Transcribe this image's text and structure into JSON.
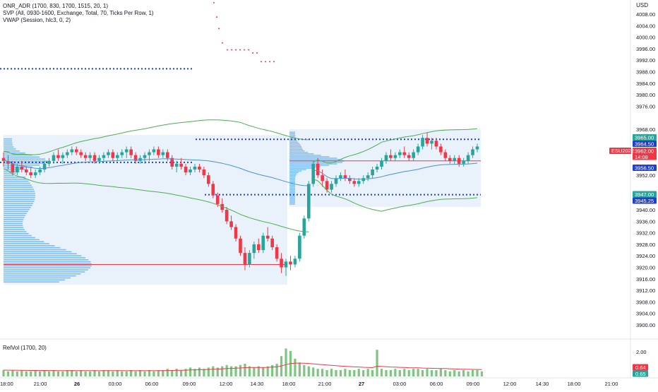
{
  "chart": {
    "currency": "USD",
    "indicators": [
      "ONR_ADR (1700, 830, 1700, 1515, 20, 1)",
      "SVP (All, 0930-1600, Exchange, Total, 70, Ticks Per Row, 1)",
      "VWAP (Session, hlc3, 0, 2)"
    ],
    "lower_pane_title": "RelVol (1700, 20)",
    "price_scale_ticks": [
      "4008.00",
      "4004.00",
      "4000.00",
      "3996.00",
      "3992.00",
      "3988.00",
      "3984.00",
      "3980.00",
      "3976.00",
      "3968.00",
      "3952.00",
      "3940.00",
      "3936.00",
      "3932.00",
      "3928.00",
      "3924.00",
      "3920.00",
      "3916.00",
      "3912.00",
      "3908.00",
      "3904.00",
      "3900.00"
    ],
    "price_tags": [
      {
        "text": "3965.00",
        "color": "#26a69a",
        "price": 3965.0
      },
      {
        "text": "3964.50",
        "color": "#1f3fcf",
        "price": 3964.5
      },
      {
        "text": "3962.00",
        "color": "#f23645",
        "price": 3962.0
      },
      {
        "text": "14:08",
        "color": "#f23645",
        "price": 3960.0
      },
      {
        "text": "3956.50",
        "color": "#1f3fcf",
        "price": 3956.5
      },
      {
        "text": "3947.00",
        "color": "#26a69a",
        "price": 3947.0
      },
      {
        "text": "3945.25",
        "color": "#1f3fcf",
        "price": 3945.25
      }
    ],
    "symbol_tag": "ESU2022",
    "relvol_scale_ticks": [
      "2.00",
      "1.00"
    ],
    "relvol_tags": [
      {
        "text": "0.64",
        "color": "#f23645"
      },
      {
        "text": "0.65",
        "color": "#26a69a"
      }
    ],
    "time_axis_labels": [
      "18:00",
      "21:00",
      "26",
      "03:00",
      "06:00",
      "09:00",
      "12:00",
      "14:30",
      "18:00",
      "21:00",
      "27",
      "03:00",
      "06:00",
      "09:00",
      "12:00",
      "14:30",
      "18:00",
      "21:00"
    ],
    "colors": {
      "up": "#26a69a",
      "down": "#f23645",
      "dotted_level": "#1f3fcf",
      "profile": "#2196f3",
      "vwap": "#4a90d9",
      "band": "#4caf50",
      "poc": "#f23645"
    }
  },
  "chart_data": {
    "type": "candlestick",
    "price_range": [
      3898,
      4012
    ],
    "levels": [
      3989,
      3964.5,
      3956.5,
      3945.25
    ],
    "poc_prices": [
      3921,
      3957
    ],
    "adr_dots": [
      4012,
      4008,
      4004,
      4000,
      3997,
      3995,
      3991
    ],
    "candles": [
      [
        3958,
        3960,
        3955,
        3957
      ],
      [
        3957,
        3959,
        3954,
        3956
      ],
      [
        3956,
        3957,
        3952,
        3953
      ],
      [
        3953,
        3956,
        3952,
        3955
      ],
      [
        3955,
        3957,
        3953,
        3954
      ],
      [
        3954,
        3955,
        3952,
        3953
      ],
      [
        3953,
        3955,
        3951,
        3952
      ],
      [
        3952,
        3954,
        3951,
        3953
      ],
      [
        3953,
        3955,
        3952,
        3954
      ],
      [
        3954,
        3957,
        3953,
        3956
      ],
      [
        3956,
        3958,
        3955,
        3957
      ],
      [
        3957,
        3960,
        3956,
        3959
      ],
      [
        3959,
        3961,
        3957,
        3958
      ],
      [
        3958,
        3960,
        3956,
        3959
      ],
      [
        3959,
        3961,
        3958,
        3960
      ],
      [
        3960,
        3962,
        3959,
        3961
      ],
      [
        3961,
        3962,
        3959,
        3960
      ],
      [
        3960,
        3961,
        3958,
        3959
      ],
      [
        3959,
        3960,
        3957,
        3958
      ],
      [
        3958,
        3960,
        3957,
        3959
      ],
      [
        3959,
        3960,
        3956,
        3957
      ],
      [
        3957,
        3959,
        3956,
        3958
      ],
      [
        3958,
        3960,
        3957,
        3959
      ],
      [
        3959,
        3961,
        3958,
        3960
      ],
      [
        3960,
        3961,
        3957,
        3958
      ],
      [
        3958,
        3960,
        3957,
        3959
      ],
      [
        3959,
        3961,
        3958,
        3960
      ],
      [
        3960,
        3962,
        3958,
        3961
      ],
      [
        3961,
        3962,
        3958,
        3959
      ],
      [
        3959,
        3960,
        3956,
        3957
      ],
      [
        3957,
        3959,
        3956,
        3958
      ],
      [
        3958,
        3960,
        3956,
        3959
      ],
      [
        3959,
        3961,
        3957,
        3960
      ],
      [
        3960,
        3962,
        3959,
        3961
      ],
      [
        3961,
        3962,
        3958,
        3959
      ],
      [
        3959,
        3961,
        3958,
        3960
      ],
      [
        3960,
        3961,
        3957,
        3958
      ],
      [
        3958,
        3959,
        3954,
        3955
      ],
      [
        3955,
        3957,
        3953,
        3956
      ],
      [
        3956,
        3958,
        3954,
        3955
      ],
      [
        3955,
        3956,
        3952,
        3953
      ],
      [
        3953,
        3955,
        3952,
        3954
      ],
      [
        3954,
        3956,
        3953,
        3955
      ],
      [
        3955,
        3956,
        3953,
        3954
      ],
      [
        3954,
        3955,
        3951,
        3952
      ],
      [
        3952,
        3953,
        3948,
        3949
      ],
      [
        3949,
        3950,
        3944,
        3945
      ],
      [
        3945,
        3946,
        3941,
        3942
      ],
      [
        3942,
        3944,
        3939,
        3940
      ],
      [
        3940,
        3941,
        3935,
        3936
      ],
      [
        3936,
        3938,
        3933,
        3934
      ],
      [
        3934,
        3935,
        3929,
        3930
      ],
      [
        3930,
        3931,
        3924,
        3925
      ],
      [
        3925,
        3927,
        3919,
        3921
      ],
      [
        3921,
        3926,
        3920,
        3925
      ],
      [
        3925,
        3929,
        3923,
        3928
      ],
      [
        3928,
        3930,
        3925,
        3926
      ],
      [
        3926,
        3932,
        3925,
        3931
      ],
      [
        3931,
        3934,
        3929,
        3930
      ],
      [
        3930,
        3931,
        3926,
        3927
      ],
      [
        3927,
        3928,
        3922,
        3923
      ],
      [
        3923,
        3925,
        3918,
        3920
      ],
      [
        3920,
        3923,
        3917,
        3922
      ],
      [
        3922,
        3924,
        3919,
        3921
      ],
      [
        3921,
        3924,
        3920,
        3923
      ],
      [
        3923,
        3932,
        3922,
        3931
      ],
      [
        3931,
        3938,
        3930,
        3937
      ],
      [
        3937,
        3950,
        3936,
        3949
      ],
      [
        3949,
        3957,
        3948,
        3956
      ],
      [
        3956,
        3958,
        3951,
        3952
      ],
      [
        3952,
        3954,
        3948,
        3950
      ],
      [
        3950,
        3951,
        3946,
        3947
      ],
      [
        3947,
        3950,
        3946,
        3949
      ],
      [
        3949,
        3952,
        3948,
        3951
      ],
      [
        3951,
        3953,
        3950,
        3952
      ],
      [
        3952,
        3954,
        3950,
        3951
      ],
      [
        3951,
        3952,
        3949,
        3950
      ],
      [
        3950,
        3951,
        3948,
        3949
      ],
      [
        3949,
        3951,
        3948,
        3950
      ],
      [
        3950,
        3952,
        3949,
        3951
      ],
      [
        3951,
        3953,
        3950,
        3952
      ],
      [
        3952,
        3955,
        3951,
        3954
      ],
      [
        3954,
        3956,
        3953,
        3955
      ],
      [
        3955,
        3958,
        3954,
        3957
      ],
      [
        3957,
        3960,
        3956,
        3959
      ],
      [
        3959,
        3961,
        3957,
        3958
      ],
      [
        3958,
        3960,
        3957,
        3959
      ],
      [
        3959,
        3961,
        3958,
        3960
      ],
      [
        3960,
        3962,
        3958,
        3959
      ],
      [
        3959,
        3960,
        3957,
        3958
      ],
      [
        3958,
        3961,
        3957,
        3960
      ],
      [
        3960,
        3963,
        3959,
        3962
      ],
      [
        3962,
        3966,
        3961,
        3965
      ],
      [
        3965,
        3967,
        3962,
        3963
      ],
      [
        3963,
        3965,
        3961,
        3964
      ],
      [
        3964,
        3965,
        3961,
        3962
      ],
      [
        3962,
        3963,
        3959,
        3960
      ],
      [
        3960,
        3961,
        3957,
        3958
      ],
      [
        3958,
        3959,
        3956,
        3957
      ],
      [
        3957,
        3959,
        3956,
        3958
      ],
      [
        3958,
        3959,
        3955,
        3956
      ],
      [
        3956,
        3958,
        3955,
        3957
      ],
      [
        3957,
        3960,
        3956,
        3959
      ],
      [
        3959,
        3962,
        3958,
        3961
      ],
      [
        3961,
        3963,
        3960,
        3962
      ]
    ],
    "relvol": [
      0.5,
      0.4,
      0.5,
      0.4,
      0.5,
      0.4,
      0.4,
      0.5,
      0.4,
      0.5,
      0.4,
      0.5,
      0.4,
      0.4,
      0.5,
      0.5,
      0.4,
      0.5,
      0.4,
      0.4,
      0.5,
      0.4,
      0.5,
      0.5,
      0.4,
      0.5,
      0.4,
      0.4,
      0.5,
      0.4,
      0.5,
      0.4,
      0.5,
      0.4,
      0.5,
      0.5,
      0.6,
      0.5,
      0.6,
      0.5,
      0.6,
      0.7,
      0.6,
      0.7,
      0.6,
      0.7,
      0.8,
      0.7,
      0.8,
      0.9,
      0.8,
      0.8,
      0.9,
      1.0,
      0.8,
      0.7,
      0.8,
      0.7,
      0.8,
      0.9,
      1.0,
      1.6,
      2.2,
      2.0,
      1.4,
      1.1,
      0.9,
      0.8,
      0.7,
      0.6,
      0.6,
      0.5,
      0.6,
      0.5,
      0.5,
      0.6,
      0.5,
      0.5,
      0.6,
      0.5,
      0.6,
      0.5,
      2.1,
      0.6,
      0.5,
      0.5,
      0.6,
      0.5,
      0.6,
      0.5,
      0.6,
      0.6,
      0.5,
      0.6,
      0.5,
      0.5,
      0.6,
      0.5,
      0.4,
      0.5,
      0.4,
      0.5,
      0.4,
      0.5,
      0.5,
      0.4
    ]
  }
}
